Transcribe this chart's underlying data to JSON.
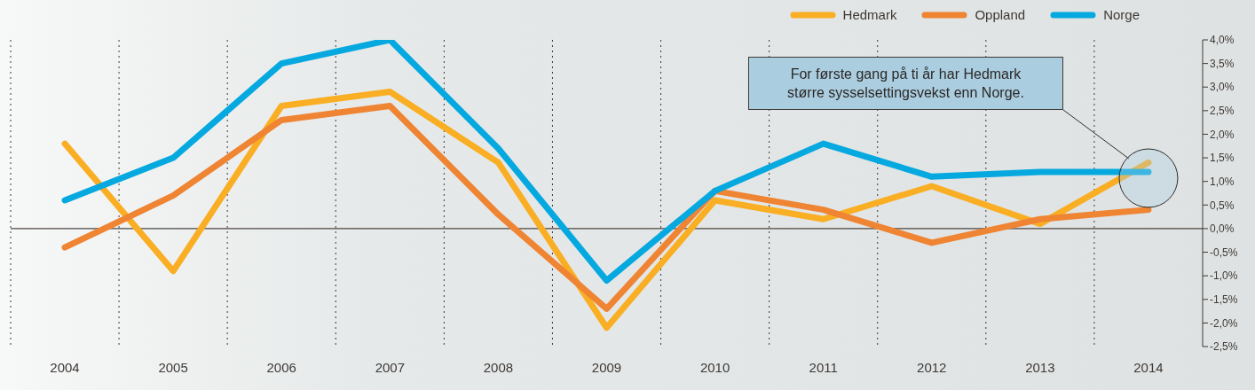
{
  "chart_data": {
    "type": "line",
    "categories": [
      "2004",
      "2005",
      "2006",
      "2007",
      "2008",
      "2009",
      "2010",
      "2011",
      "2012",
      "2013",
      "2014"
    ],
    "series": [
      {
        "name": "Hedmark",
        "color": "#f9ae23",
        "values": [
          1.8,
          -0.9,
          2.6,
          2.9,
          1.4,
          -2.1,
          0.6,
          0.2,
          0.9,
          0.1,
          1.4
        ]
      },
      {
        "name": "Oppland",
        "color": "#ef8433",
        "values": [
          -0.4,
          0.7,
          2.3,
          2.6,
          0.3,
          -1.7,
          0.8,
          0.4,
          -0.3,
          0.2,
          0.4
        ]
      },
      {
        "name": "Norge",
        "color": "#05a9e0",
        "values": [
          0.6,
          1.5,
          3.5,
          4.0,
          1.7,
          -1.1,
          0.8,
          1.8,
          1.1,
          1.2,
          1.2
        ]
      }
    ],
    "ylim": [
      -2.5,
      4.0
    ],
    "yticks": [
      {
        "value": -2.5,
        "label": "-2,5%"
      },
      {
        "value": -2.0,
        "label": "-2,0%"
      },
      {
        "value": -1.5,
        "label": "-1,5%"
      },
      {
        "value": -1.0,
        "label": "-1,0%"
      },
      {
        "value": -0.5,
        "label": "-0,5%"
      },
      {
        "value": 0,
        "label": "0,0%"
      },
      {
        "value": 0.5,
        "label": "0,5%"
      },
      {
        "value": 1.0,
        "label": "1,0%"
      },
      {
        "value": 1.5,
        "label": "1,5%"
      },
      {
        "value": 2.0,
        "label": "2,0%"
      },
      {
        "value": 2.5,
        "label": "2,5%"
      },
      {
        "value": 3.0,
        "label": "3,0%"
      },
      {
        "value": 3.5,
        "label": "3,5%"
      },
      {
        "value": 4.0,
        "label": "4,0%"
      }
    ],
    "ref_lines": [
      {
        "axis": "y",
        "value": 0,
        "color": "#4a4540"
      }
    ],
    "annotations": [
      "For første gang på ti år har Hedmark større sysselsettingsvekst enn Norge."
    ],
    "grid": "x",
    "legend": "top right",
    "marker": "none",
    "line_style": "solid"
  }
}
